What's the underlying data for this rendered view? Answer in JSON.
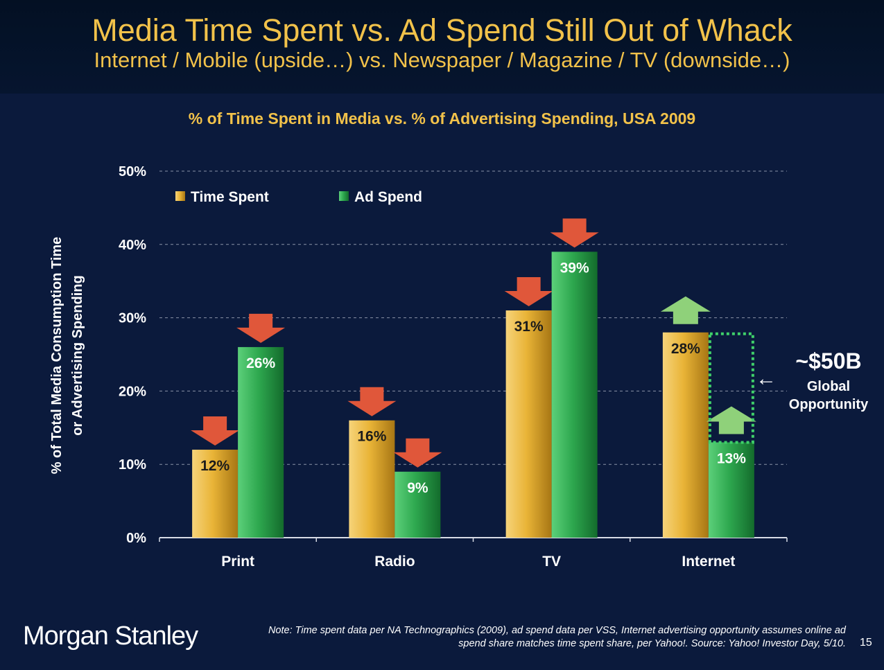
{
  "header": {
    "title": "Media Time Spent vs. Ad Spend Still Out of Whack",
    "subtitle": "Internet / Mobile (upside…) vs. Newspaper / Magazine / TV (downside…)"
  },
  "chart_data": {
    "type": "bar",
    "title": "% of Time Spent in Media vs. % of Advertising Spending, USA 2009",
    "ylabel_lines": [
      "% of Total Media Consumption Time",
      "or Advertising Spending"
    ],
    "xlabel": "",
    "categories": [
      "Print",
      "Radio",
      "TV",
      "Internet"
    ],
    "series": [
      {
        "name": "Time Spent",
        "values": [
          12,
          16,
          31,
          28
        ],
        "labels": [
          "12%",
          "16%",
          "31%",
          "28%"
        ],
        "color": "#e8b135"
      },
      {
        "name": "Ad Spend",
        "values": [
          26,
          9,
          39,
          13
        ],
        "labels": [
          "26%",
          "9%",
          "39%",
          "13%"
        ],
        "color": "#2ea84f"
      }
    ],
    "ylim": [
      0,
      50
    ],
    "yticks": [
      0,
      10,
      20,
      30,
      40,
      50
    ],
    "ytick_labels": [
      "0%",
      "10%",
      "20%",
      "30%",
      "40%",
      "50%"
    ],
    "grid": "dashed horizontal",
    "legend_position": "top-left",
    "annotations": {
      "trend_arrows": [
        {
          "category": "Print",
          "series": "Time Spent",
          "direction": "down"
        },
        {
          "category": "Print",
          "series": "Ad Spend",
          "direction": "down"
        },
        {
          "category": "Radio",
          "series": "Time Spent",
          "direction": "down"
        },
        {
          "category": "Radio",
          "series": "Ad Spend",
          "direction": "down"
        },
        {
          "category": "TV",
          "series": "Time Spent",
          "direction": "down"
        },
        {
          "category": "TV",
          "series": "Ad Spend",
          "direction": "down"
        },
        {
          "category": "Internet",
          "series": "Time Spent",
          "direction": "up"
        },
        {
          "category": "Internet",
          "series": "Ad Spend",
          "direction": "up"
        }
      ],
      "gap": {
        "category": "Internet",
        "from": 13,
        "to": 28
      },
      "opportunity_amount": "~$50B",
      "opportunity_text_lines": [
        "Global",
        "Opportunity"
      ]
    },
    "colors": {
      "down_arrow": "#e0573a",
      "up_arrow": "#8fd17a",
      "axis_text": "#ffffff",
      "grid": "#8a93a8"
    }
  },
  "footer": {
    "logo_text": "Morgan Stanley",
    "note_line1": "Note: Time spent data per NA Technographics (2009), ad spend data per VSS, Internet advertising opportunity assumes online ad",
    "note_line2": "spend share matches time spent share, per Yahoo!. Source: Yahoo! Investor Day, 5/10.",
    "page_number": "15"
  }
}
